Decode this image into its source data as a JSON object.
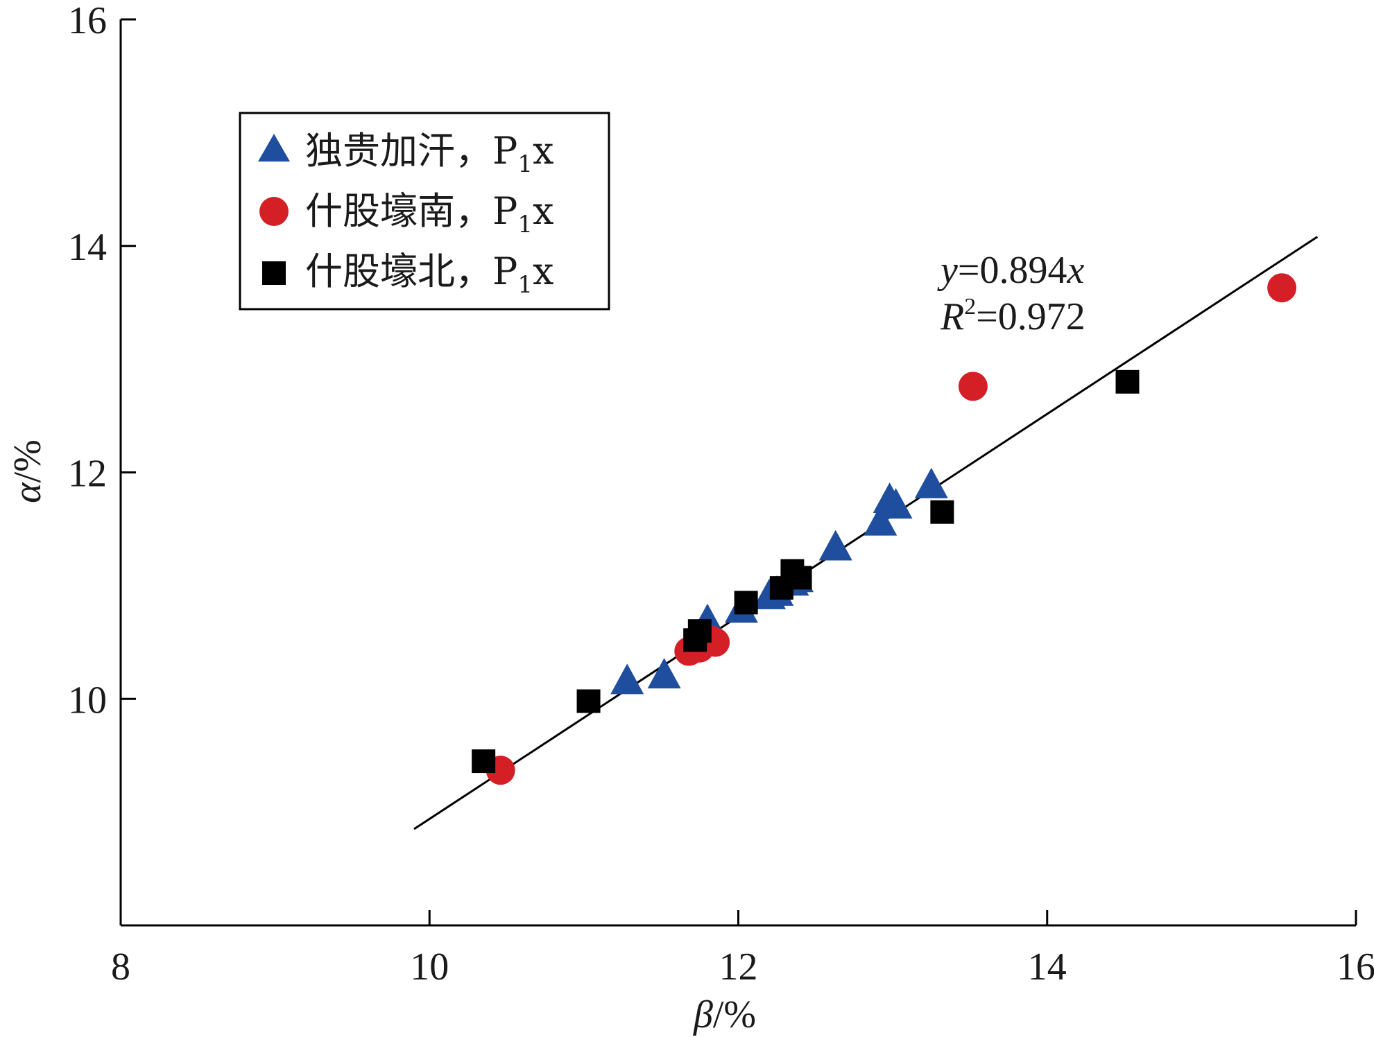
{
  "chart_data": {
    "type": "scatter",
    "title": "",
    "xlabel": {
      "var": "β",
      "unit": "/%"
    },
    "ylabel": {
      "var": "α",
      "unit": "/%"
    },
    "xlim": [
      8,
      16
    ],
    "ylim": [
      8,
      16
    ],
    "xticks": [
      "8",
      "10",
      "12",
      "14",
      "16"
    ],
    "yticks": [
      "10",
      "12",
      "14",
      "16"
    ],
    "legend_position": "top-left",
    "series": [
      {
        "name": "独贵加汗，P₁x",
        "label_main": "独贵加汗，P",
        "label_sub": "1",
        "label_tail": "x",
        "marker": "triangle",
        "color": "#1f4e9e",
        "points": [
          [
            11.28,
            10.15
          ],
          [
            11.52,
            10.2
          ],
          [
            11.75,
            10.55
          ],
          [
            11.78,
            10.62
          ],
          [
            11.8,
            10.68
          ],
          [
            12.02,
            10.78
          ],
          [
            12.2,
            10.9
          ],
          [
            12.25,
            10.93
          ],
          [
            12.35,
            11.02
          ],
          [
            12.38,
            11.05
          ],
          [
            12.63,
            11.33
          ],
          [
            12.92,
            11.55
          ],
          [
            12.98,
            11.75
          ],
          [
            13.02,
            11.7
          ],
          [
            13.25,
            11.88
          ]
        ]
      },
      {
        "name": "什股壕南，P₁x",
        "label_main": "什股壕南，P",
        "label_sub": "1",
        "label_tail": "x",
        "marker": "circle",
        "color": "#d41f26",
        "points": [
          [
            10.46,
            9.37
          ],
          [
            11.68,
            10.42
          ],
          [
            11.75,
            10.45
          ],
          [
            11.82,
            10.52
          ],
          [
            11.85,
            10.5
          ],
          [
            13.52,
            12.76
          ],
          [
            15.52,
            13.63
          ]
        ]
      },
      {
        "name": "什股壕北，P₁x",
        "label_main": "什股壕北，P",
        "label_sub": "1",
        "label_tail": "x",
        "marker": "square",
        "color": "#000000",
        "points": [
          [
            10.35,
            9.45
          ],
          [
            11.03,
            9.98
          ],
          [
            11.72,
            10.52
          ],
          [
            11.75,
            10.6
          ],
          [
            12.05,
            10.85
          ],
          [
            12.28,
            10.98
          ],
          [
            12.35,
            11.13
          ],
          [
            12.4,
            11.07
          ],
          [
            13.32,
            11.65
          ],
          [
            14.52,
            12.8
          ]
        ]
      }
    ],
    "fit_line": {
      "slope": 0.894,
      "x_range": [
        9.9,
        15.75
      ],
      "color": "#000000"
    },
    "annotations": {
      "equation_var_y": "y",
      "equation_rest": "=0.894",
      "equation_var_x": "x",
      "r2_var": "R",
      "r2_sup": "2",
      "r2_rest": "=0.972"
    }
  }
}
